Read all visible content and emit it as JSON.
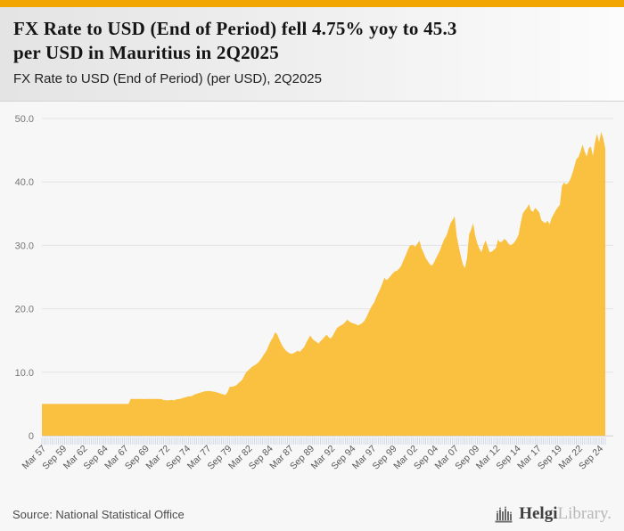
{
  "header": {
    "title_lines": [
      "FX Rate to USD (End of Period) fell 4.75% yoy to 45.3",
      "per USD in Mauritius in 2Q2025"
    ],
    "subtitle": "FX Rate to USD (End of Period) (per USD), 2Q2025"
  },
  "footer": {
    "source": "Source: National Statistical Office",
    "logo_bold": "Helgi",
    "logo_light": "Library."
  },
  "colors": {
    "accent_bar": "#f2a602",
    "area_fill": "#f9be35",
    "gridline": "#e3e3e3",
    "quarter_tick": "#c7d0e2",
    "y_label": "#777777",
    "x_label": "#58595b"
  },
  "chart_data": {
    "type": "area",
    "title": "FX Rate to USD (End of Period) fell 4.75% yoy to 45.3 per USD in Mauritius in 2Q2025",
    "subtitle": "FX Rate to USD (End of Period) (per USD), 2Q2025",
    "country": "Mauritius",
    "unit": "per USD",
    "frequency": "quarterly",
    "start_period": "Mar 1957",
    "end_period": "Jun 2025 (2Q2025)",
    "latest_value": 45.3,
    "yoy_change_pct": -4.75,
    "ylim": [
      0,
      50
    ],
    "grid": true,
    "legend": false,
    "y_ticks": [
      0,
      10,
      20,
      30,
      40,
      50
    ],
    "y_tick_labels": [
      "0",
      "10.0",
      "20.0",
      "30.0",
      "40.0",
      "50.0"
    ],
    "x_tick_every": 10,
    "x_tick_labels": [
      "Mar 57",
      "Sep 59",
      "Mar 62",
      "Sep 64",
      "Mar 67",
      "Sep 69",
      "Mar 72",
      "Sep 74",
      "Mar 77",
      "Sep 79",
      "Mar 82",
      "Sep 84",
      "Mar 87",
      "Sep 89",
      "Mar 92",
      "Sep 94",
      "Mar 97",
      "Sep 99",
      "Mar 02",
      "Sep 04",
      "Mar 07",
      "Sep 09",
      "Mar 12",
      "Sep 14",
      "Mar 17",
      "Sep 19",
      "Mar 22",
      "Sep 24"
    ],
    "fill_color": "#f9be35",
    "values": [
      5.0,
      5.0,
      5.0,
      5.0,
      5.0,
      5.0,
      5.0,
      5.0,
      5.0,
      5.0,
      5.0,
      5.0,
      5.0,
      5.0,
      5.0,
      5.0,
      5.0,
      5.0,
      5.0,
      5.0,
      5.0,
      5.0,
      5.0,
      5.0,
      5.0,
      5.0,
      5.0,
      5.0,
      5.0,
      5.0,
      5.0,
      5.0,
      5.0,
      5.0,
      5.0,
      5.0,
      5.0,
      5.0,
      5.0,
      5.0,
      5.0,
      5.0,
      5.0,
      5.8,
      5.8,
      5.8,
      5.8,
      5.8,
      5.8,
      5.8,
      5.75,
      5.8,
      5.8,
      5.8,
      5.8,
      5.8,
      5.8,
      5.8,
      5.75,
      5.6,
      5.6,
      5.55,
      5.6,
      5.65,
      5.55,
      5.7,
      5.75,
      5.8,
      5.9,
      6.0,
      6.1,
      6.2,
      6.2,
      6.3,
      6.5,
      6.6,
      6.7,
      6.8,
      6.9,
      7.0,
      7.0,
      7.05,
      7.0,
      6.95,
      6.9,
      6.8,
      6.7,
      6.6,
      6.5,
      6.4,
      6.9,
      7.7,
      7.7,
      7.8,
      7.9,
      8.2,
      8.5,
      8.8,
      9.4,
      10.0,
      10.3,
      10.6,
      10.9,
      11.1,
      11.3,
      11.6,
      12.0,
      12.5,
      13.0,
      13.5,
      14.3,
      15.0,
      15.5,
      16.3,
      16.0,
      15.2,
      14.5,
      13.9,
      13.5,
      13.2,
      13.0,
      12.9,
      13.0,
      13.2,
      13.4,
      13.2,
      13.6,
      13.9,
      14.6,
      15.2,
      15.8,
      15.3,
      15.0,
      14.8,
      14.5,
      14.9,
      15.2,
      15.6,
      15.9,
      15.5,
      15.3,
      15.8,
      16.4,
      17.0,
      17.2,
      17.4,
      17.6,
      17.9,
      18.3,
      18.0,
      17.8,
      17.7,
      17.6,
      17.4,
      17.5,
      17.7,
      18.0,
      18.5,
      19.2,
      19.9,
      20.5,
      21.0,
      21.8,
      22.5,
      23.2,
      24.0,
      24.9,
      24.5,
      24.8,
      25.2,
      25.6,
      25.9,
      26.0,
      26.3,
      26.7,
      27.5,
      28.2,
      29.0,
      29.8,
      30.1,
      30.0,
      29.8,
      30.3,
      30.7,
      29.5,
      28.8,
      28.0,
      27.5,
      27.0,
      26.8,
      27.3,
      28.0,
      28.6,
      29.3,
      30.2,
      31.0,
      31.5,
      32.5,
      33.5,
      34.0,
      34.6,
      31.5,
      29.8,
      28.3,
      27.0,
      26.4,
      28.0,
      31.7,
      32.5,
      33.5,
      31.5,
      30.3,
      29.5,
      28.9,
      30.0,
      30.8,
      29.8,
      28.9,
      29.0,
      29.3,
      29.6,
      30.9,
      30.5,
      30.6,
      31.0,
      30.8,
      30.3,
      30.0,
      30.2,
      30.5,
      31.0,
      31.7,
      33.5,
      35.0,
      35.5,
      35.9,
      36.5,
      35.5,
      35.3,
      35.9,
      35.6,
      35.2,
      34.0,
      33.7,
      33.5,
      33.9,
      33.3,
      34.3,
      34.9,
      35.5,
      36.0,
      36.4,
      39.3,
      39.9,
      39.6,
      39.8,
      40.4,
      41.3,
      42.4,
      43.6,
      43.9,
      44.8,
      45.9,
      44.8,
      44.0,
      45.3,
      45.6,
      44.1,
      46.2,
      47.6,
      46.2,
      47.9,
      46.9,
      45.3
    ]
  }
}
